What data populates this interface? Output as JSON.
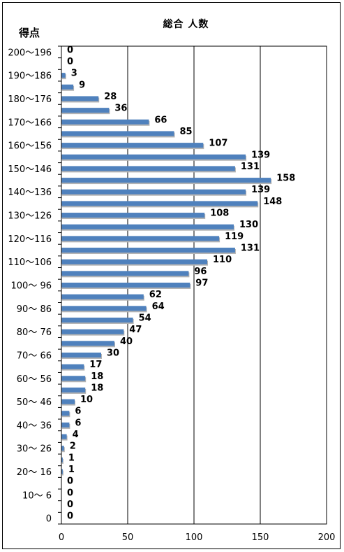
{
  "chart_data": {
    "type": "bar",
    "orientation": "horizontal",
    "title": "総合 人数",
    "ylabel": "得点",
    "xlabel": "",
    "xlim": [
      0,
      200
    ],
    "xticks": [
      0,
      50,
      100,
      150,
      200
    ],
    "grid": true,
    "categories": [
      "200～196",
      "195～191",
      "190～186",
      "185～181",
      "180～176",
      "175～171",
      "170～166",
      "165～161",
      "160～156",
      "155～151",
      "150～146",
      "145～141",
      "140～136",
      "135～131",
      "130～126",
      "125～121",
      "120～116",
      "115～111",
      "110～106",
      "105～101",
      "100～ 96",
      "95～ 91",
      "90～ 86",
      "85～ 81",
      "80～ 76",
      "75～ 71",
      "70～ 66",
      "65～ 61",
      "60～ 56",
      "55～ 51",
      "50～ 46",
      "45～ 41",
      "40～ 36",
      "35～ 31",
      "30～ 26",
      "25～ 21",
      "20～ 16",
      "15～ 11",
      "10～ 6",
      "5～ 1",
      "0"
    ],
    "visible_category_labels": [
      "200～196",
      "190～186",
      "180～176",
      "170～166",
      "160～156",
      "150～146",
      "140～136",
      "130～126",
      "120～116",
      "110～106",
      "100～ 96",
      "90～ 86",
      "80～ 76",
      "70～ 66",
      "60～ 56",
      "50～ 46",
      "40～ 36",
      "30～ 26",
      "20～ 16",
      "10～ 6",
      "0"
    ],
    "values": [
      0,
      0,
      3,
      9,
      28,
      36,
      66,
      85,
      107,
      139,
      131,
      158,
      139,
      148,
      108,
      130,
      119,
      131,
      110,
      96,
      97,
      62,
      64,
      54,
      47,
      40,
      30,
      17,
      18,
      18,
      10,
      6,
      6,
      4,
      2,
      1,
      1,
      0,
      0,
      0,
      0
    ],
    "colors": {
      "bar": "#4f81bd",
      "bar_shadow": "#b4b4b4",
      "axis": "#000000",
      "grid": "#000000"
    }
  }
}
